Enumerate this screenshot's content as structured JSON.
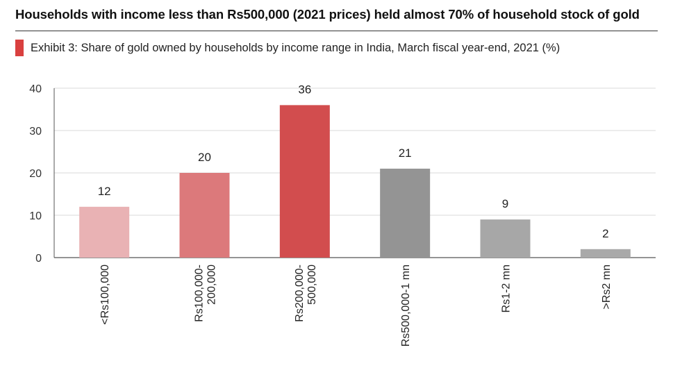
{
  "headline": "Households with income less than Rs500,000 (2021 prices) held almost 70% of household stock of gold",
  "exhibit": {
    "title": "Exhibit 3: Share of gold owned by households by income range in India, March fiscal year-end, 2021 (%)",
    "marker_color": "#d9403f"
  },
  "chart_data": {
    "type": "bar",
    "title": "Exhibit 3: Share of gold owned by households by income range in India, March fiscal year-end, 2021 (%)",
    "xlabel": "",
    "ylabel": "",
    "categories": [
      "<Rs100,000",
      "Rs100,000-200,000",
      "Rs200,000-500,000",
      "Rs500,000-1 mn",
      "Rs1-2 mn",
      ">Rs2 mn"
    ],
    "category_label_lines": [
      [
        "<Rs100,000"
      ],
      [
        "Rs100,000-",
        "200,000"
      ],
      [
        "Rs200,000-",
        "500,000"
      ],
      [
        "Rs500,000-1 mn"
      ],
      [
        "Rs1-2 mn"
      ],
      [
        ">Rs2 mn"
      ]
    ],
    "values": [
      12,
      20,
      36,
      21,
      9,
      2
    ],
    "data_labels": [
      "12",
      "20",
      "36",
      "21",
      "9",
      "2"
    ],
    "bar_colors": [
      "#e9b2b4",
      "#dc797b",
      "#d24d4e",
      "#949494",
      "#a7a7a7",
      "#a9a9a9"
    ],
    "ylim": [
      0,
      40
    ],
    "yticks": [
      0,
      10,
      20,
      30,
      40
    ],
    "grid": true,
    "legend": "none"
  }
}
